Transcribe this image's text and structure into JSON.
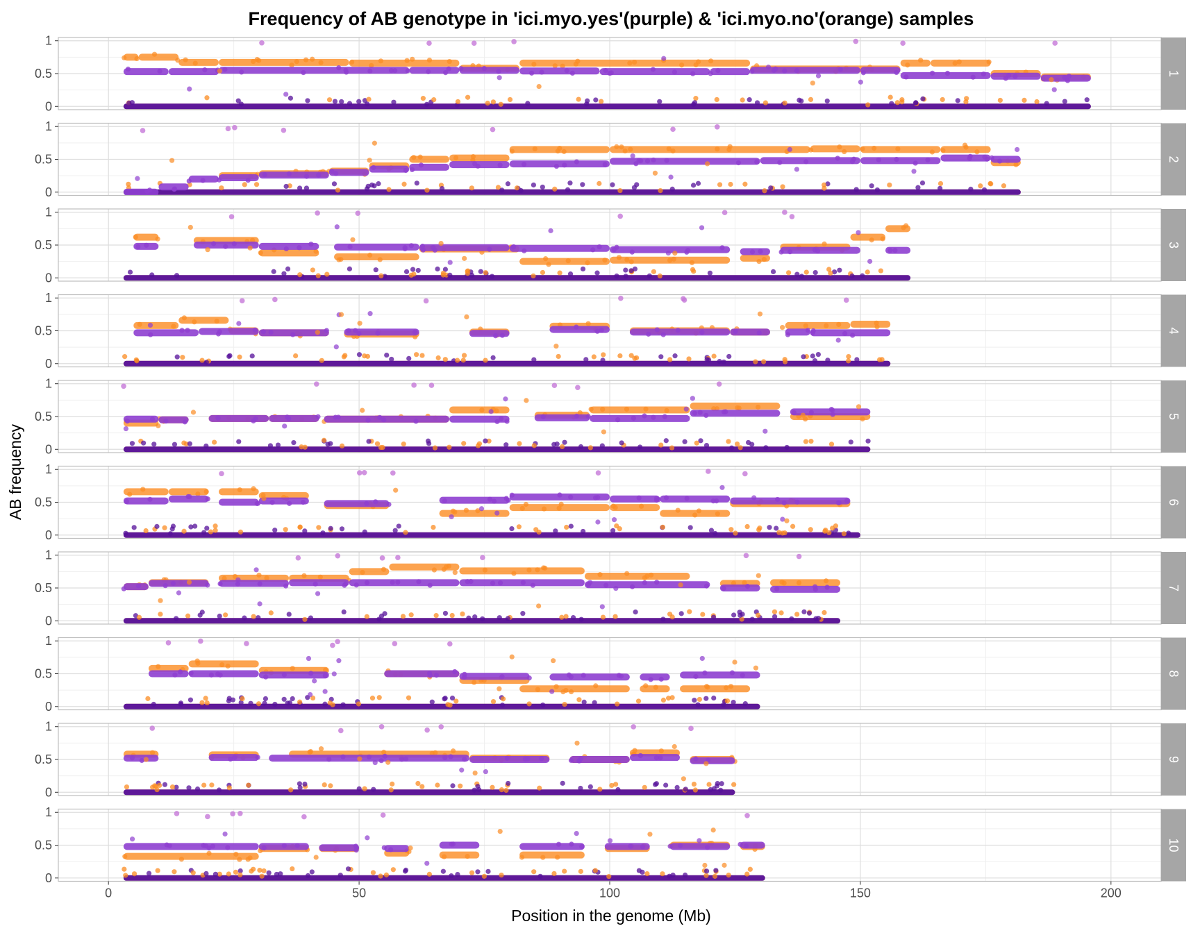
{
  "chart_data": {
    "type": "scatter",
    "title": "Frequency of AB genotype in 'ici.myo.yes'(purple) & 'ici.myo.no'(orange) samples",
    "xlabel": "Position in the genome (Mb)",
    "ylabel": "AB frequency",
    "xlim": [
      -10,
      210
    ],
    "ylim": [
      -0.05,
      1.05
    ],
    "x_ticks": [
      0,
      50,
      100,
      150,
      200
    ],
    "y_ticks": [
      0,
      0.5,
      1
    ],
    "y_tick_labels": [
      "0",
      "0.5",
      "1"
    ],
    "grid": true,
    "facet_by": "chromosome",
    "legend": "none",
    "colors": {
      "yes_band": "#8e3fd0",
      "yes_zero": "#55109a",
      "no": "#fb8c23",
      "outlier": "#c678d8",
      "strip": "#a6a6a6",
      "panel_border": "#bebebe",
      "grid_major": "#dedede",
      "grid_minor": "#efefef"
    },
    "panels": [
      {
        "label": "1",
        "chrom_end": 196,
        "purple": [
          [
            3,
            12,
            0.53
          ],
          [
            12,
            22,
            0.53
          ],
          [
            22,
            60,
            0.55
          ],
          [
            60,
            70,
            0.55
          ],
          [
            70,
            82,
            0.55
          ],
          [
            82,
            98,
            0.54
          ],
          [
            98,
            120,
            0.53
          ],
          [
            120,
            128,
            0.53
          ],
          [
            128,
            150,
            0.55
          ],
          [
            150,
            158,
            0.55
          ],
          [
            158,
            176,
            0.47
          ],
          [
            176,
            186,
            0.46
          ],
          [
            186,
            196,
            0.43
          ]
        ],
        "orange": [
          [
            3,
            6,
            0.75
          ],
          [
            6,
            14,
            0.75
          ],
          [
            14,
            22,
            0.67
          ],
          [
            22,
            48,
            0.67
          ],
          [
            48,
            70,
            0.66
          ],
          [
            70,
            82,
            0.58
          ],
          [
            82,
            128,
            0.66
          ],
          [
            128,
            158,
            0.57
          ],
          [
            158,
            164,
            0.66
          ],
          [
            164,
            176,
            0.66
          ],
          [
            176,
            186,
            0.5
          ],
          [
            186,
            196,
            0.45
          ]
        ]
      },
      {
        "label": "2",
        "chrom_end": 182,
        "purple": [
          [
            3,
            10,
            0
          ],
          [
            10,
            16,
            0.08
          ],
          [
            16,
            22,
            0.2
          ],
          [
            22,
            30,
            0.22
          ],
          [
            30,
            44,
            0.26
          ],
          [
            44,
            52,
            0.3
          ],
          [
            52,
            60,
            0.35
          ],
          [
            60,
            68,
            0.38
          ],
          [
            68,
            80,
            0.42
          ],
          [
            80,
            100,
            0.43
          ],
          [
            100,
            130,
            0.47
          ],
          [
            130,
            150,
            0.48
          ],
          [
            150,
            166,
            0.48
          ],
          [
            166,
            176,
            0.52
          ],
          [
            176,
            182,
            0.5
          ]
        ],
        "orange": [
          [
            22,
            30,
            0.25
          ],
          [
            30,
            44,
            0.28
          ],
          [
            44,
            52,
            0.32
          ],
          [
            52,
            60,
            0.4
          ],
          [
            60,
            68,
            0.5
          ],
          [
            68,
            80,
            0.52
          ],
          [
            80,
            100,
            0.65
          ],
          [
            100,
            140,
            0.65
          ],
          [
            140,
            150,
            0.66
          ],
          [
            150,
            166,
            0.65
          ],
          [
            166,
            176,
            0.65
          ],
          [
            176,
            182,
            0.45
          ]
        ]
      },
      {
        "label": "3",
        "chrom_end": 160,
        "purple": [
          [
            5,
            10,
            0.48
          ],
          [
            17,
            30,
            0.5
          ],
          [
            30,
            42,
            0.48
          ],
          [
            45,
            62,
            0.47
          ],
          [
            62,
            80,
            0.46
          ],
          [
            80,
            100,
            0.45
          ],
          [
            100,
            124,
            0.43
          ],
          [
            126,
            132,
            0.4
          ],
          [
            134,
            150,
            0.42
          ],
          [
            155,
            160,
            0.42
          ]
        ],
        "orange": [
          [
            5,
            10,
            0.62
          ],
          [
            17,
            30,
            0.57
          ],
          [
            30,
            42,
            0.38
          ],
          [
            45,
            62,
            0.32
          ],
          [
            62,
            82,
            0.44
          ],
          [
            82,
            100,
            0.25
          ],
          [
            100,
            124,
            0.27
          ],
          [
            126,
            132,
            0.3
          ],
          [
            134,
            148,
            0.47
          ],
          [
            148,
            155,
            0.62
          ],
          [
            155,
            160,
            0.75
          ]
        ]
      },
      {
        "label": "4",
        "chrom_end": 156,
        "purple": [
          [
            5,
            18,
            0.47
          ],
          [
            18,
            30,
            0.49
          ],
          [
            30,
            44,
            0.47
          ],
          [
            47,
            62,
            0.48
          ],
          [
            72,
            80,
            0.46
          ],
          [
            88,
            100,
            0.52
          ],
          [
            104,
            124,
            0.48
          ],
          [
            124,
            132,
            0.48
          ],
          [
            135,
            140,
            0.48
          ],
          [
            140,
            156,
            0.47
          ]
        ],
        "orange": [
          [
            5,
            14,
            0.58
          ],
          [
            14,
            24,
            0.66
          ],
          [
            24,
            30,
            0.5
          ],
          [
            30,
            44,
            0.47
          ],
          [
            47,
            62,
            0.45
          ],
          [
            72,
            80,
            0.48
          ],
          [
            88,
            100,
            0.57
          ],
          [
            104,
            124,
            0.5
          ],
          [
            124,
            132,
            0.48
          ],
          [
            135,
            148,
            0.58
          ],
          [
            148,
            156,
            0.6
          ]
        ]
      },
      {
        "label": "5",
        "chrom_end": 152,
        "purple": [
          [
            3,
            10,
            0.46
          ],
          [
            10,
            16,
            0.45
          ],
          [
            20,
            32,
            0.47
          ],
          [
            32,
            42,
            0.47
          ],
          [
            43,
            68,
            0.46
          ],
          [
            68,
            80,
            0.46
          ],
          [
            85,
            96,
            0.48
          ],
          [
            96,
            116,
            0.47
          ],
          [
            116,
            134,
            0.55
          ],
          [
            136,
            152,
            0.57
          ]
        ],
        "orange": [
          [
            3,
            10,
            0.4
          ],
          [
            10,
            16,
            0.45
          ],
          [
            20,
            32,
            0.47
          ],
          [
            32,
            42,
            0.47
          ],
          [
            43,
            68,
            0.46
          ],
          [
            68,
            80,
            0.6
          ],
          [
            85,
            96,
            0.52
          ],
          [
            96,
            116,
            0.6
          ],
          [
            116,
            134,
            0.66
          ],
          [
            136,
            152,
            0.5
          ]
        ]
      },
      {
        "label": "6",
        "chrom_end": 150,
        "purple": [
          [
            3,
            12,
            0.52
          ],
          [
            12,
            20,
            0.55
          ],
          [
            22,
            30,
            0.5
          ],
          [
            30,
            40,
            0.52
          ],
          [
            43,
            56,
            0.48
          ],
          [
            66,
            80,
            0.53
          ],
          [
            80,
            100,
            0.58
          ],
          [
            100,
            110,
            0.55
          ],
          [
            110,
            124,
            0.55
          ],
          [
            124,
            148,
            0.52
          ]
        ],
        "orange": [
          [
            3,
            12,
            0.66
          ],
          [
            12,
            20,
            0.66
          ],
          [
            22,
            30,
            0.66
          ],
          [
            30,
            40,
            0.6
          ],
          [
            43,
            56,
            0.45
          ],
          [
            66,
            80,
            0.33
          ],
          [
            80,
            100,
            0.42
          ],
          [
            100,
            110,
            0.42
          ],
          [
            110,
            124,
            0.33
          ],
          [
            124,
            148,
            0.48
          ]
        ]
      },
      {
        "label": "7",
        "chrom_end": 146,
        "purple": [
          [
            3,
            8,
            0.52
          ],
          [
            8,
            20,
            0.57
          ],
          [
            22,
            36,
            0.57
          ],
          [
            36,
            48,
            0.58
          ],
          [
            48,
            70,
            0.58
          ],
          [
            70,
            95,
            0.58
          ],
          [
            95,
            120,
            0.55
          ],
          [
            122,
            130,
            0.5
          ],
          [
            132,
            146,
            0.48
          ]
        ],
        "orange": [
          [
            3,
            8,
            0.52
          ],
          [
            8,
            20,
            0.58
          ],
          [
            22,
            36,
            0.65
          ],
          [
            36,
            48,
            0.65
          ],
          [
            48,
            56,
            0.75
          ],
          [
            56,
            70,
            0.82
          ],
          [
            70,
            95,
            0.76
          ],
          [
            95,
            116,
            0.68
          ],
          [
            122,
            130,
            0.57
          ],
          [
            132,
            146,
            0.58
          ]
        ]
      },
      {
        "label": "8",
        "chrom_end": 130,
        "purple": [
          [
            8,
            16,
            0.5
          ],
          [
            16,
            30,
            0.5
          ],
          [
            30,
            44,
            0.48
          ],
          [
            55,
            70,
            0.5
          ],
          [
            70,
            84,
            0.46
          ],
          [
            88,
            104,
            0.45
          ],
          [
            106,
            112,
            0.45
          ],
          [
            114,
            130,
            0.48
          ]
        ],
        "orange": [
          [
            8,
            16,
            0.58
          ],
          [
            16,
            30,
            0.65
          ],
          [
            30,
            44,
            0.55
          ],
          [
            55,
            70,
            0.5
          ],
          [
            70,
            84,
            0.4
          ],
          [
            82,
            104,
            0.27
          ],
          [
            106,
            112,
            0.27
          ],
          [
            114,
            128,
            0.27
          ]
        ]
      },
      {
        "label": "9",
        "chrom_end": 125,
        "purple": [
          [
            3,
            10,
            0.52
          ],
          [
            20,
            30,
            0.53
          ],
          [
            32,
            72,
            0.52
          ],
          [
            72,
            88,
            0.5
          ],
          [
            92,
            104,
            0.5
          ],
          [
            104,
            114,
            0.53
          ],
          [
            116,
            125,
            0.48
          ]
        ],
        "orange": [
          [
            3,
            10,
            0.58
          ],
          [
            20,
            30,
            0.57
          ],
          [
            36,
            72,
            0.58
          ],
          [
            72,
            88,
            0.52
          ],
          [
            92,
            104,
            0.5
          ],
          [
            104,
            114,
            0.6
          ],
          [
            116,
            125,
            0.5
          ]
        ]
      },
      {
        "label": "10",
        "chrom_end": 131,
        "purple": [
          [
            3,
            30,
            0.48
          ],
          [
            30,
            40,
            0.48
          ],
          [
            42,
            50,
            0.46
          ],
          [
            55,
            60,
            0.45
          ],
          [
            66,
            74,
            0.5
          ],
          [
            82,
            95,
            0.48
          ],
          [
            99,
            108,
            0.48
          ],
          [
            112,
            124,
            0.48
          ],
          [
            126,
            131,
            0.5
          ]
        ],
        "orange": [
          [
            3,
            30,
            0.33
          ],
          [
            30,
            40,
            0.45
          ],
          [
            42,
            50,
            0.45
          ],
          [
            55,
            60,
            0.38
          ],
          [
            66,
            74,
            0.35
          ],
          [
            82,
            95,
            0.35
          ],
          [
            99,
            108,
            0.45
          ],
          [
            112,
            124,
            0.5
          ],
          [
            126,
            131,
            0.48
          ]
        ]
      }
    ]
  }
}
